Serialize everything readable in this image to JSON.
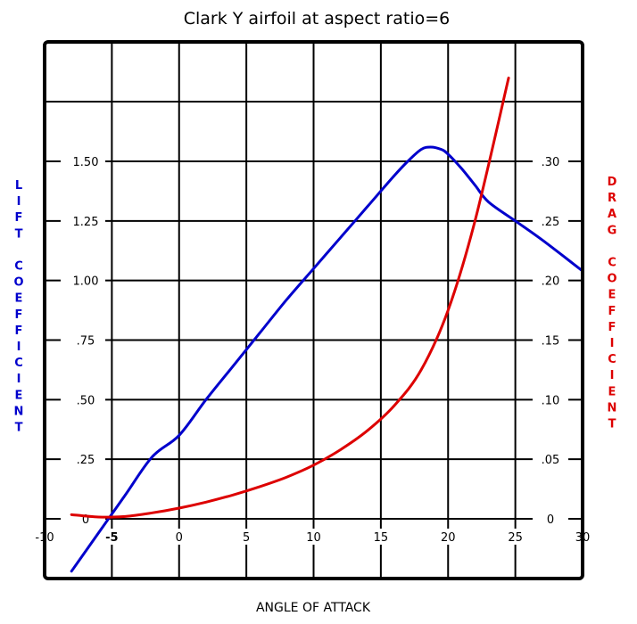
{
  "chart_data": {
    "type": "line",
    "title": "Clark Y airfoil at aspect ratio=6",
    "xlabel": "ANGLE OF ATTACK",
    "ylabel_left": "LIFT COEFFICIENT",
    "ylabel_right": "DRAG COEFFICIENT",
    "xlim": [
      -10,
      30
    ],
    "ylim_left": [
      0,
      1.5
    ],
    "ylim_right": [
      0,
      0.3
    ],
    "grid": true,
    "x_ticks": [
      {
        "value": -10,
        "label": "-10"
      },
      {
        "value": -5,
        "label": "-5"
      },
      {
        "value": 0,
        "label": "0"
      },
      {
        "value": 5,
        "label": "5"
      },
      {
        "value": 10,
        "label": "10"
      },
      {
        "value": 15,
        "label": "15"
      },
      {
        "value": 20,
        "label": "20"
      },
      {
        "value": 25,
        "label": "25"
      },
      {
        "value": 30,
        "label": "30"
      }
    ],
    "y_left_ticks": [
      {
        "value": 0,
        "label": "0"
      },
      {
        "value": 0.25,
        "label": ".25"
      },
      {
        "value": 0.5,
        "label": ".50"
      },
      {
        "value": 0.75,
        "label": ".75"
      },
      {
        "value": 1.0,
        "label": "1.00"
      },
      {
        "value": 1.25,
        "label": "1.25"
      },
      {
        "value": 1.5,
        "label": "1.50"
      }
    ],
    "y_right_ticks": [
      {
        "value": 0,
        "label": "0"
      },
      {
        "value": 0.05,
        "label": ".05"
      },
      {
        "value": 0.1,
        "label": ".10"
      },
      {
        "value": 0.15,
        "label": ".15"
      },
      {
        "value": 0.2,
        "label": ".20"
      },
      {
        "value": 0.25,
        "label": ".25"
      },
      {
        "value": 0.3,
        "label": ".30"
      }
    ],
    "series": [
      {
        "axis": "left",
        "color": "#0000cc",
        "x": [
          -8,
          -6,
          -4,
          -2,
          0,
          2,
          4,
          6,
          8,
          10,
          12,
          14,
          16,
          17,
          18,
          18.7,
          19.5,
          20,
          21,
          22,
          23,
          25,
          27,
          30
        ],
        "y": [
          -0.22,
          -0.06,
          0.1,
          0.26,
          0.35,
          0.5,
          0.64,
          0.78,
          0.92,
          1.05,
          1.18,
          1.31,
          1.44,
          1.5,
          1.55,
          1.56,
          1.55,
          1.53,
          1.47,
          1.4,
          1.33,
          1.25,
          1.17,
          1.04
        ]
      },
      {
        "axis": "right",
        "color": "#dd0000",
        "x": [
          -8,
          -6,
          -4,
          -2,
          0,
          2,
          4,
          6,
          8,
          10,
          12,
          14,
          16,
          18,
          20,
          22,
          24.5
        ],
        "y": [
          0.0035,
          0.0015,
          0.002,
          0.005,
          0.009,
          0.014,
          0.02,
          0.027,
          0.035,
          0.045,
          0.058,
          0.074,
          0.095,
          0.125,
          0.175,
          0.25,
          0.37
        ]
      }
    ]
  }
}
